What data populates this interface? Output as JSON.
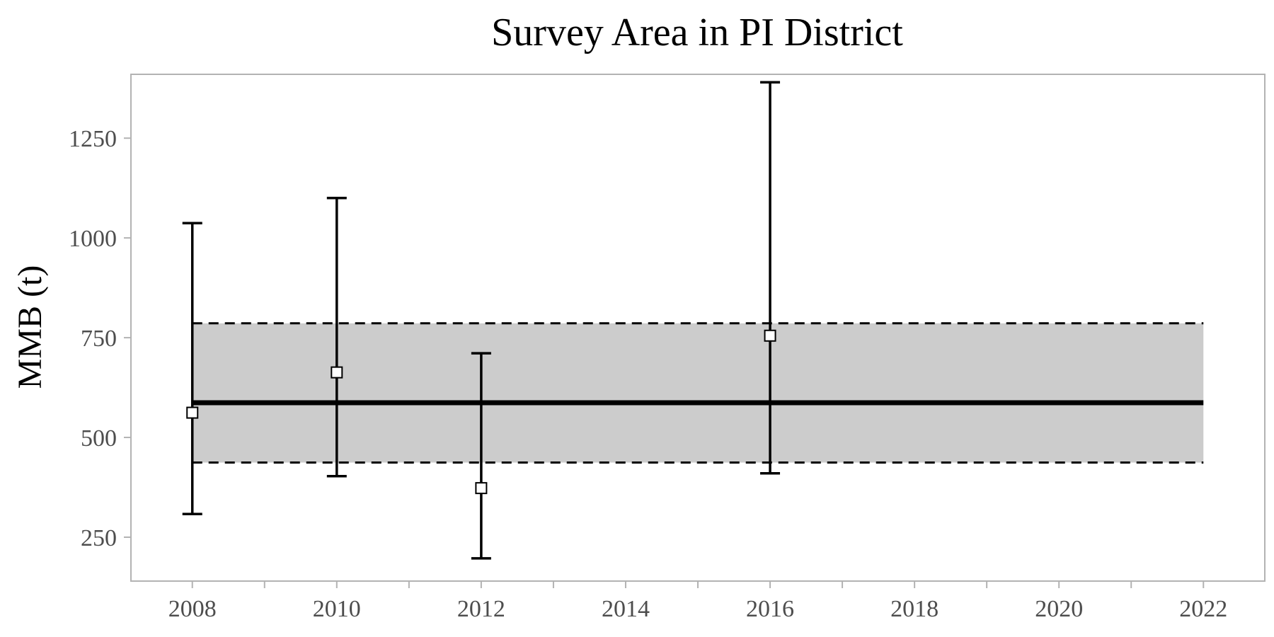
{
  "chart_data": {
    "type": "scatter",
    "title": "Survey Area in PI District",
    "xlabel": "",
    "ylabel": "MMB (t)",
    "xlim": [
      2007.15,
      2022.85
    ],
    "ylim": [
      140,
      1410
    ],
    "x_ticks": [
      2008,
      2010,
      2012,
      2014,
      2016,
      2018,
      2020,
      2022
    ],
    "x_tick_labels": [
      "2008",
      "2010",
      "2012",
      "2014",
      "2016",
      "2018",
      "2020",
      "2022"
    ],
    "y_ticks": [
      250,
      500,
      750,
      1000,
      1250
    ],
    "y_tick_labels": [
      "250",
      "500",
      "750",
      "1000",
      "1250"
    ],
    "grid": false,
    "series": [
      {
        "points": [
          {
            "x": 2008,
            "y": 562,
            "lower": 308,
            "upper": 1037
          },
          {
            "x": 2010,
            "y": 663,
            "lower": 403,
            "upper": 1100
          },
          {
            "x": 2012,
            "y": 373,
            "lower": 197,
            "upper": 711
          },
          {
            "x": 2016,
            "y": 755,
            "lower": 410,
            "upper": 1390
          }
        ]
      }
    ],
    "mean_line": {
      "x_start": 2008,
      "x_end": 2022,
      "y": 587
    },
    "band": {
      "x_start": 2008,
      "x_end": 2022,
      "lower": 437,
      "upper": 786
    }
  },
  "colors": {
    "band_fill": "#cccccc",
    "line": "#000000",
    "marker_fill": "#ffffff",
    "frame": "#b3b3b3",
    "tick_text": "#4d4d4d"
  }
}
